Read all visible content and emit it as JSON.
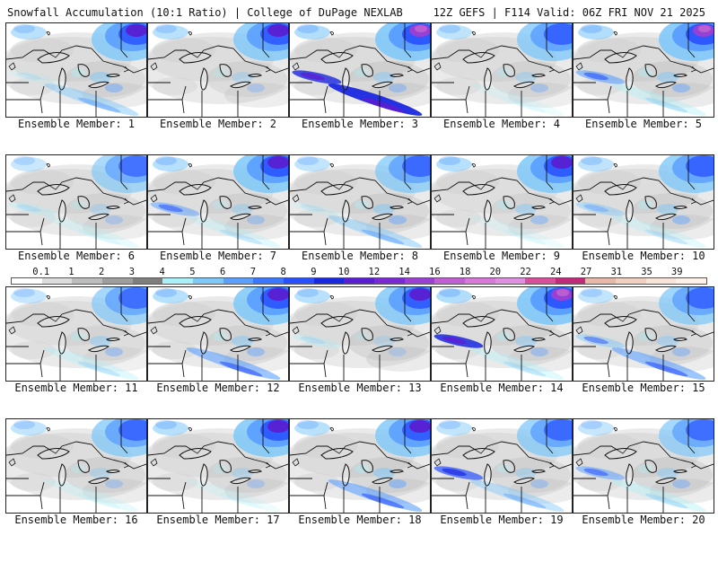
{
  "header": {
    "left": "Snowfall Accumulation (10:1 Ratio) | College of DuPage NEXLAB",
    "right": "12Z GEFS | F114 Valid: 06Z FRI NOV 21 2025"
  },
  "legend": {
    "labels": [
      "0.1",
      "1",
      "2",
      "3",
      "4",
      "5",
      "6",
      "7",
      "8",
      "9",
      "10",
      "12",
      "14",
      "16",
      "18",
      "20",
      "22",
      "24",
      "27",
      "31",
      "35",
      "39"
    ],
    "colors": [
      "#ffffff",
      "#dcdcdc",
      "#bdbdbd",
      "#9e9e9e",
      "#7e7e7e",
      "#aaf0f8",
      "#7fc8f8",
      "#5ca0ff",
      "#3c78ff",
      "#2850ff",
      "#1a28e0",
      "#5a1ed2",
      "#7a2ad2",
      "#9a40d2",
      "#c060d2",
      "#d878d8",
      "#e090e0",
      "#d8509a",
      "#c02a78",
      "#e8b8a8",
      "#f0d0c0",
      "#f8e4d8",
      "#fdf0e8"
    ]
  },
  "members": [
    {
      "label": "Ensemble Member: 1",
      "snow": {
        "ne": 0.9,
        "lake": 0.5,
        "south": 0.5,
        "west": 0.2,
        "grey": 0.55
      }
    },
    {
      "label": "Ensemble Member: 2",
      "snow": {
        "ne": 0.9,
        "lake": 0.35,
        "south": 0.15,
        "west": 0.1,
        "grey": 0.5
      }
    },
    {
      "label": "Ensemble Member: 3",
      "snow": {
        "ne": 1.0,
        "lake": 0.45,
        "south": 0.95,
        "west": 0.8,
        "grey": 0.6
      }
    },
    {
      "label": "Ensemble Member: 4",
      "snow": {
        "ne": 0.85,
        "lake": 0.4,
        "south": 0.2,
        "west": 0.1,
        "grey": 0.5
      }
    },
    {
      "label": "Ensemble Member: 5",
      "snow": {
        "ne": 1.0,
        "lake": 0.5,
        "south": 0.4,
        "west": 0.6,
        "grey": 0.6
      }
    },
    {
      "label": "Ensemble Member: 6",
      "snow": {
        "ne": 0.7,
        "lake": 0.35,
        "south": 0.25,
        "west": 0.3,
        "grey": 0.5
      }
    },
    {
      "label": "Ensemble Member: 7",
      "snow": {
        "ne": 0.95,
        "lake": 0.4,
        "south": 0.3,
        "west": 0.55,
        "grey": 0.55
      }
    },
    {
      "label": "Ensemble Member: 8",
      "snow": {
        "ne": 0.8,
        "lake": 0.5,
        "south": 0.5,
        "west": 0.2,
        "grey": 0.6
      }
    },
    {
      "label": "Ensemble Member: 9",
      "snow": {
        "ne": 0.95,
        "lake": 0.45,
        "south": 0.2,
        "west": 0.1,
        "grey": 0.45
      }
    },
    {
      "label": "Ensemble Member: 10",
      "snow": {
        "ne": 0.85,
        "lake": 0.5,
        "south": 0.3,
        "west": 0.45,
        "grey": 0.55
      }
    },
    {
      "label": "Ensemble Member: 11",
      "snow": {
        "ne": 0.75,
        "lake": 0.45,
        "south": 0.35,
        "west": 0.1,
        "grey": 0.45
      }
    },
    {
      "label": "Ensemble Member: 12",
      "snow": {
        "ne": 0.95,
        "lake": 0.5,
        "south": 0.6,
        "west": 0.1,
        "grey": 0.5
      }
    },
    {
      "label": "Ensemble Member: 13",
      "snow": {
        "ne": 0.9,
        "lake": 0.3,
        "south": 0.1,
        "west": 0.3,
        "grey": 0.6
      }
    },
    {
      "label": "Ensemble Member: 14",
      "snow": {
        "ne": 1.0,
        "lake": 0.45,
        "south": 0.35,
        "west": 0.85,
        "grey": 0.55
      }
    },
    {
      "label": "Ensemble Member: 15",
      "snow": {
        "ne": 0.8,
        "lake": 0.45,
        "south": 0.6,
        "west": 0.5,
        "grey": 0.55
      }
    },
    {
      "label": "Ensemble Member: 16",
      "snow": {
        "ne": 0.8,
        "lake": 0.35,
        "south": 0.25,
        "west": 0.1,
        "grey": 0.55
      }
    },
    {
      "label": "Ensemble Member: 17",
      "snow": {
        "ne": 0.95,
        "lake": 0.35,
        "south": 0.2,
        "west": 0.1,
        "grey": 0.55
      }
    },
    {
      "label": "Ensemble Member: 18",
      "snow": {
        "ne": 0.9,
        "lake": 0.55,
        "south": 0.6,
        "west": 0.15,
        "grey": 0.6
      }
    },
    {
      "label": "Ensemble Member: 19",
      "snow": {
        "ne": 0.8,
        "lake": 0.4,
        "south": 0.45,
        "west": 0.7,
        "grey": 0.55
      }
    },
    {
      "label": "Ensemble Member: 20",
      "snow": {
        "ne": 0.75,
        "lake": 0.45,
        "south": 0.4,
        "west": 0.55,
        "grey": 0.6
      }
    }
  ]
}
